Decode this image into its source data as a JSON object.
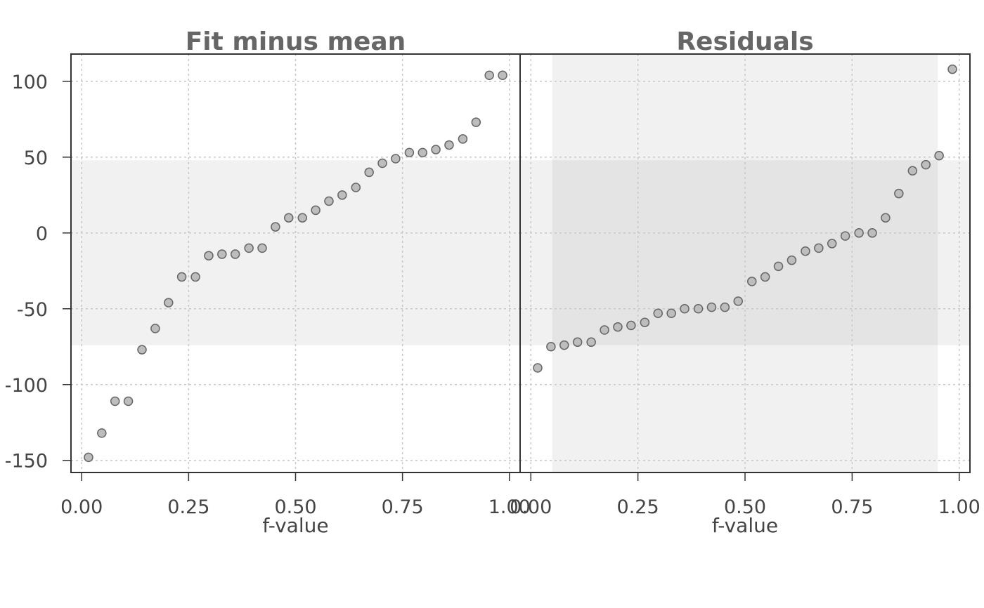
{
  "chart_data": [
    {
      "type": "scatter",
      "title": "Fit minus mean",
      "xlabel": "f-value",
      "xlim": [
        -0.025,
        1.025
      ],
      "ylim": [
        -158,
        118
      ],
      "x_ticks": [
        "0.00",
        "0.25",
        "0.50",
        "0.75",
        "1.00"
      ],
      "y_ticks": [
        "100",
        "50",
        "0",
        "-50",
        "-100",
        "-150"
      ],
      "band": {
        "y_from": -74,
        "y_to": 48
      },
      "x": [
        0.016,
        0.047,
        0.078,
        0.109,
        0.141,
        0.172,
        0.203,
        0.234,
        0.266,
        0.297,
        0.328,
        0.359,
        0.391,
        0.422,
        0.453,
        0.484,
        0.516,
        0.547,
        0.578,
        0.609,
        0.641,
        0.672,
        0.703,
        0.734,
        0.766,
        0.797,
        0.828,
        0.859,
        0.891,
        0.922,
        0.953,
        0.984
      ],
      "y": [
        -148,
        -132,
        -111,
        -111,
        -77,
        -63,
        -46,
        -29,
        -29,
        -15,
        -14,
        -14,
        -10,
        -10,
        4,
        10,
        10,
        15,
        21,
        25,
        30,
        40,
        46,
        49,
        53,
        53,
        55,
        58,
        62,
        73,
        104,
        104
      ]
    },
    {
      "type": "scatter",
      "title": "Residuals",
      "xlabel": "f-value",
      "xlim": [
        -0.025,
        1.025
      ],
      "ylim": [
        -158,
        118
      ],
      "x_ticks": [
        "0.00",
        "0.25",
        "0.50",
        "0.75",
        "1.00"
      ],
      "y_ticks": [
        "100",
        "50",
        "0",
        "-50",
        "-100",
        "-150"
      ],
      "band": {
        "y_from": -74,
        "y_to": 48
      },
      "x": [
        0.016,
        0.047,
        0.078,
        0.109,
        0.141,
        0.172,
        0.203,
        0.234,
        0.266,
        0.297,
        0.328,
        0.359,
        0.391,
        0.422,
        0.453,
        0.484,
        0.516,
        0.547,
        0.578,
        0.609,
        0.641,
        0.672,
        0.703,
        0.734,
        0.766,
        0.797,
        0.828,
        0.859,
        0.891,
        0.922,
        0.953,
        0.984
      ],
      "y": [
        -89,
        -75,
        -74,
        -72,
        -72,
        -64,
        -62,
        -61,
        -59,
        -53,
        -53,
        -50,
        -50,
        -49,
        -49,
        -45,
        -32,
        -29,
        -22,
        -18,
        -12,
        -10,
        -7,
        -2,
        0,
        0,
        10,
        26,
        41,
        45,
        51,
        108
      ],
      "xband": {
        "x_from": 0.05,
        "x_to": 0.95
      }
    }
  ]
}
